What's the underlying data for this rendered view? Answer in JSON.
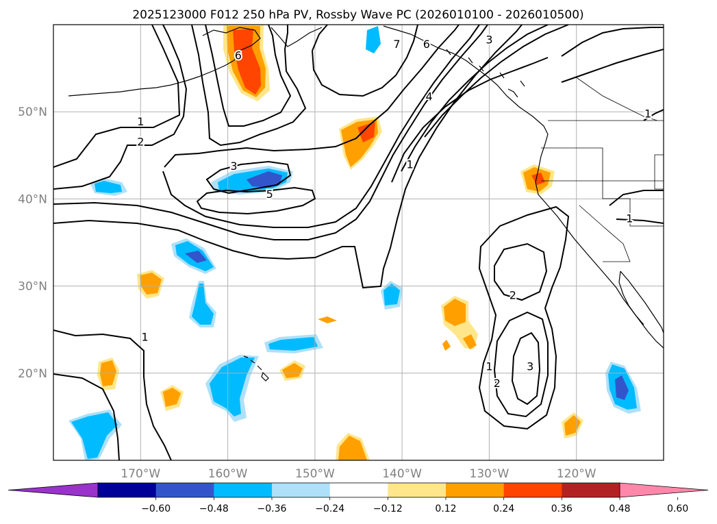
{
  "chart_data": {
    "type": "contour-map",
    "title": "2025123000 F012 250 hPa PV, Rossby Wave PC (2026010100 - 2026010500)",
    "projection": "lat-lon",
    "lon_range": [
      -180,
      -110
    ],
    "lat_range": [
      10,
      60
    ],
    "lat_ticks": [
      {
        "value": 20,
        "label": "20°N"
      },
      {
        "value": 30,
        "label": "30°N"
      },
      {
        "value": 40,
        "label": "40°N"
      },
      {
        "value": 50,
        "label": "50°N"
      }
    ],
    "lon_ticks": [
      {
        "value": -170,
        "label": "170°W"
      },
      {
        "value": -160,
        "label": "160°W"
      },
      {
        "value": -150,
        "label": "150°W"
      },
      {
        "value": -140,
        "label": "140°W"
      },
      {
        "value": -130,
        "label": "130°W"
      },
      {
        "value": -120,
        "label": "120°W"
      }
    ],
    "grid": true,
    "contour_variable": "250 hPa PV (PVU)",
    "contour_labels": [
      {
        "text": "1",
        "lon": -170.0,
        "lat": 48.9
      },
      {
        "text": "2",
        "lon": -170.0,
        "lat": 46.6
      },
      {
        "text": "3",
        "lon": -159.3,
        "lat": 43.8
      },
      {
        "text": "5",
        "lon": -155.2,
        "lat": 40.6
      },
      {
        "text": "6",
        "lon": -158.8,
        "lat": 56.5
      },
      {
        "text": "7",
        "lon": -140.6,
        "lat": 57.8
      },
      {
        "text": "6",
        "lon": -137.2,
        "lat": 57.8
      },
      {
        "text": "3",
        "lon": -130.0,
        "lat": 58.3
      },
      {
        "text": "4",
        "lon": -136.9,
        "lat": 51.8
      },
      {
        "text": "1",
        "lon": -139.1,
        "lat": 44.0
      },
      {
        "text": "1",
        "lon": -169.5,
        "lat": 24.2
      },
      {
        "text": "2",
        "lon": -127.3,
        "lat": 29.0
      },
      {
        "text": "1",
        "lon": -130.0,
        "lat": 20.8
      },
      {
        "text": "2",
        "lon": -129.1,
        "lat": 18.9
      },
      {
        "text": "3",
        "lon": -125.3,
        "lat": 20.8
      },
      {
        "text": "1",
        "lon": -111.8,
        "lat": 49.8
      },
      {
        "text": "1",
        "lon": -113.9,
        "lat": 37.8
      }
    ],
    "shading_variable": "Rossby Wave PC",
    "colorbar": {
      "orientation": "horizontal",
      "extend": "both",
      "levels": [
        -0.72,
        -0.6,
        -0.48,
        -0.36,
        -0.24,
        -0.12,
        0.12,
        0.24,
        0.36,
        0.48,
        0.6,
        0.72
      ],
      "tick_labels": [
        "−0.60",
        "−0.48",
        "−0.36",
        "−0.24",
        "−0.12",
        "0.12",
        "0.24",
        "0.36",
        "0.48",
        "0.60"
      ],
      "colors": [
        "#9933cc",
        "#000099",
        "#3355cc",
        "#00bbff",
        "#aee0fa",
        "#ffffff",
        "#ffe68a",
        "#ffa000",
        "#ff4500",
        "#b22222",
        "#ff88aa"
      ],
      "under_color": "#9933cc",
      "over_color": "#ff88aa"
    }
  }
}
